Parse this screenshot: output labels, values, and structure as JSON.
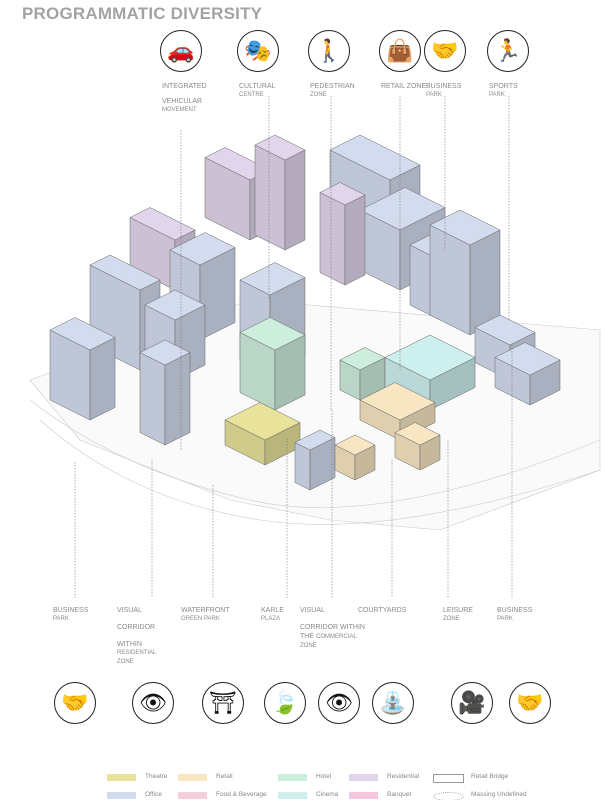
{
  "title": "PROGRAMMATIC DIVERSITY",
  "top_icons": [
    {
      "icon": "car-icon",
      "glyph": "🚗",
      "l1": "INTEGRATED",
      "l2": "VEHICULAR",
      "l3": "MOVEMENT"
    },
    {
      "icon": "theatre-masks-icon",
      "glyph": "🎭",
      "l1": "CULTURAL",
      "l2": "CENTRE"
    },
    {
      "icon": "pedestrian-icon",
      "glyph": "🚶",
      "l1": "PEDESTRIAN",
      "l2": "ZONE"
    },
    {
      "icon": "shopping-bag-icon",
      "glyph": "👜",
      "l1": "RETAIL ZONE"
    },
    {
      "icon": "business-people-icon",
      "glyph": "🤝",
      "l1": "BUSINESS",
      "l2": "PARK"
    },
    {
      "icon": "runner-icon",
      "glyph": "🏃",
      "l1": "SPORTS",
      "l2": "PARK"
    }
  ],
  "bottom_labels": [
    {
      "l1": "BUSINESS",
      "l2": "PARK"
    },
    {
      "l1": "VISUAL",
      "l2": "CORRIDOR",
      "l3": "WITHIN",
      "l4": "RESIDENTIAL",
      "l5": "ZONE"
    },
    {
      "l1": "WATERFRONT",
      "l2": "GREEN PARK"
    },
    {
      "l1": "KARLE",
      "l2": "PLAZA"
    },
    {
      "l1": "VISUAL",
      "l2": "CORRIDOR WITHIN",
      "l3": "THE",
      "l4": "COMMERCIAL",
      "l5": "ZONE"
    },
    {
      "l1": "COURTYARDS"
    },
    {
      "l1": "LEISURE",
      "l2": "ZONE"
    },
    {
      "l1": "BUSINESS",
      "l2": "PARK"
    }
  ],
  "bottom_icons": [
    {
      "icon": "business-people-icon",
      "glyph": "🤝"
    },
    {
      "icon": "eye-icon",
      "glyph": "👁"
    },
    {
      "icon": "picnic-table-icon",
      "glyph": "⛩"
    },
    {
      "icon": "leaves-icon",
      "glyph": "🍃"
    },
    {
      "icon": "eye-icon",
      "glyph": "👁"
    },
    {
      "icon": "fountain-icon",
      "glyph": "⛲"
    },
    {
      "icon": "movie-camera-icon",
      "glyph": "🎥"
    },
    {
      "icon": "business-people-icon",
      "glyph": "🤝"
    }
  ],
  "legend": [
    {
      "label": "Theatre",
      "color": "#e8e29a"
    },
    {
      "label": "Office",
      "color": "#d3dcef"
    },
    {
      "label": "Retail",
      "color": "#f8e6c2"
    },
    {
      "label": "Food & Beverage",
      "color": "#f6cfdc"
    },
    {
      "label": "Hotel",
      "color": "#cdeedd"
    },
    {
      "label": "Cinema",
      "color": "#cdf0ef"
    },
    {
      "label": "Residential",
      "color": "#e1d5ec"
    },
    {
      "label": "Banquet",
      "color": "#f2c6de"
    },
    {
      "label": "Retail Bridge",
      "color": "#ffffff"
    },
    {
      "label": "Massing Undefined",
      "color": "#ffffff"
    }
  ]
}
